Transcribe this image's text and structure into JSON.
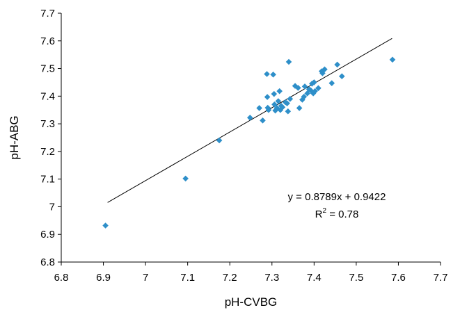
{
  "chart_data": {
    "type": "scatter",
    "xlabel": "pH-CVBG",
    "ylabel": "pH-ABG",
    "xlim": [
      6.8,
      7.7
    ],
    "ylim": [
      6.8,
      7.7
    ],
    "x_ticks": [
      "6.8",
      "6.9",
      "7",
      "7.1",
      "7.2",
      "7.3",
      "7.4",
      "7.5",
      "7.6",
      "7.7"
    ],
    "y_ticks": [
      "6.8",
      "6.9",
      "7",
      "7.1",
      "7.2",
      "7.3",
      "7.4",
      "7.5",
      "7.6",
      "7.7"
    ],
    "grid": false,
    "marker_color": "#2E8FC9",
    "trendline": {
      "slope": 0.8789,
      "intercept": 0.9422,
      "x_range": [
        6.91,
        7.585
      ]
    },
    "annotation": {
      "equation": "y = 0.8789x + 0.9422",
      "r2_prefix": "R",
      "r2_sup": "2",
      "r2_suffix": " = 0.78"
    },
    "points": [
      [
        6.905,
        6.932
      ],
      [
        7.095,
        7.102
      ],
      [
        7.175,
        7.24
      ],
      [
        7.248,
        7.322
      ],
      [
        7.27,
        7.357
      ],
      [
        7.278,
        7.312
      ],
      [
        7.288,
        7.48
      ],
      [
        7.289,
        7.397
      ],
      [
        7.29,
        7.358
      ],
      [
        7.292,
        7.35
      ],
      [
        7.303,
        7.478
      ],
      [
        7.305,
        7.408
      ],
      [
        7.306,
        7.37
      ],
      [
        7.308,
        7.348
      ],
      [
        7.312,
        7.357
      ],
      [
        7.315,
        7.382
      ],
      [
        7.318,
        7.418
      ],
      [
        7.32,
        7.35
      ],
      [
        7.322,
        7.365
      ],
      [
        7.325,
        7.36
      ],
      [
        7.332,
        7.378
      ],
      [
        7.336,
        7.374
      ],
      [
        7.338,
        7.345
      ],
      [
        7.34,
        7.524
      ],
      [
        7.343,
        7.39
      ],
      [
        7.355,
        7.437
      ],
      [
        7.362,
        7.43
      ],
      [
        7.365,
        7.357
      ],
      [
        7.372,
        7.387
      ],
      [
        7.376,
        7.398
      ],
      [
        7.378,
        7.435
      ],
      [
        7.384,
        7.41
      ],
      [
        7.388,
        7.425
      ],
      [
        7.392,
        7.421
      ],
      [
        7.395,
        7.445
      ],
      [
        7.398,
        7.41
      ],
      [
        7.4,
        7.45
      ],
      [
        7.402,
        7.418
      ],
      [
        7.41,
        7.429
      ],
      [
        7.418,
        7.49
      ],
      [
        7.42,
        7.483
      ],
      [
        7.425,
        7.497
      ],
      [
        7.442,
        7.447
      ],
      [
        7.455,
        7.514
      ],
      [
        7.466,
        7.472
      ],
      [
        7.586,
        7.532
      ]
    ]
  }
}
